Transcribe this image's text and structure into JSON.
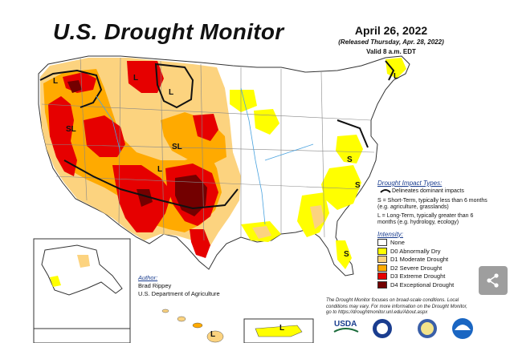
{
  "title": "U.S. Drought Monitor",
  "date": "April 26, 2022",
  "released": "(Released Thursday, Apr. 28, 2022)",
  "valid": "Valid 8 a.m. EDT",
  "map_labels": {
    "sl_west": "SL",
    "sl_plains": "SL",
    "l_pnw": "L",
    "l_montana": "L",
    "l_northplains": "L",
    "l_texas": "L",
    "l_newengland": "L",
    "s_virginia": "S",
    "s_carolina": "S",
    "s_georgia": "S",
    "l_hawaii": "L",
    "l_puertorico": "L"
  },
  "impact_types": {
    "heading": "Drought Impact Types:",
    "delineates": "Delineates dominant impacts",
    "short_term": "S = Short-Term, typically less than 6 months (e.g. agriculture, grasslands)",
    "long_term": "L = Long-Term, typically greater than 6 months (e.g. hydrology, ecology)"
  },
  "intensity": {
    "heading": "Intensity:",
    "levels": [
      {
        "label": "None",
        "color": "#ffffff"
      },
      {
        "label": "D0 Abnormally Dry",
        "color": "#ffff00"
      },
      {
        "label": "D1 Moderate Drought",
        "color": "#fcd37f"
      },
      {
        "label": "D2 Severe Drought",
        "color": "#ffaa00"
      },
      {
        "label": "D3 Extreme Drought",
        "color": "#e60000"
      },
      {
        "label": "D4 Exceptional Drought",
        "color": "#730000"
      }
    ]
  },
  "author": {
    "heading": "Author:",
    "name": "Brad Rippey",
    "org": "U.S. Department of Agriculture"
  },
  "note": "The Drought Monitor focuses on broad-scale conditions. Local conditions may vary. For more information on the Drought Monitor, go to https://droughtmonitor.unl.edu/About.aspx",
  "logos": {
    "usda": "USDA"
  },
  "share": {
    "icon": "share-icon"
  }
}
